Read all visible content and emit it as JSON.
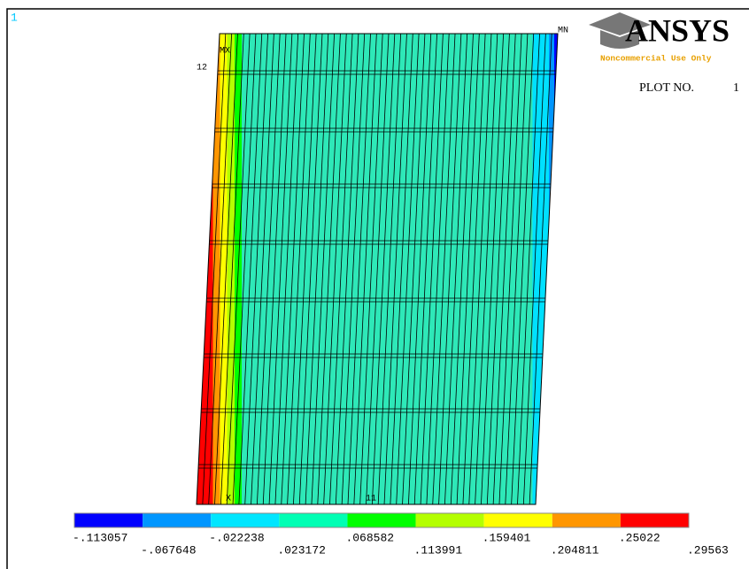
{
  "window_number": "1",
  "logo": {
    "name": "ANSYS",
    "notice": "Noncommercial Use Only"
  },
  "plot_label": "PLOT NO.",
  "plot_number": "1",
  "markers": {
    "min": "MN",
    "max": "MX",
    "node_top": "12",
    "axis": "X",
    "node_bottom": "11"
  },
  "legend": {
    "colors": [
      "#0000ff",
      "#0096ff",
      "#00e6ff",
      "#00ffb4",
      "#00ff00",
      "#b4ff00",
      "#ffff00",
      "#ff9600",
      "#ff0000"
    ],
    "labels": [
      "-.113057",
      "-.067648",
      "-.022238",
      ".023172",
      ".068582",
      ".113991",
      ".159401",
      ".204811",
      ".25022",
      ".29563"
    ]
  }
}
